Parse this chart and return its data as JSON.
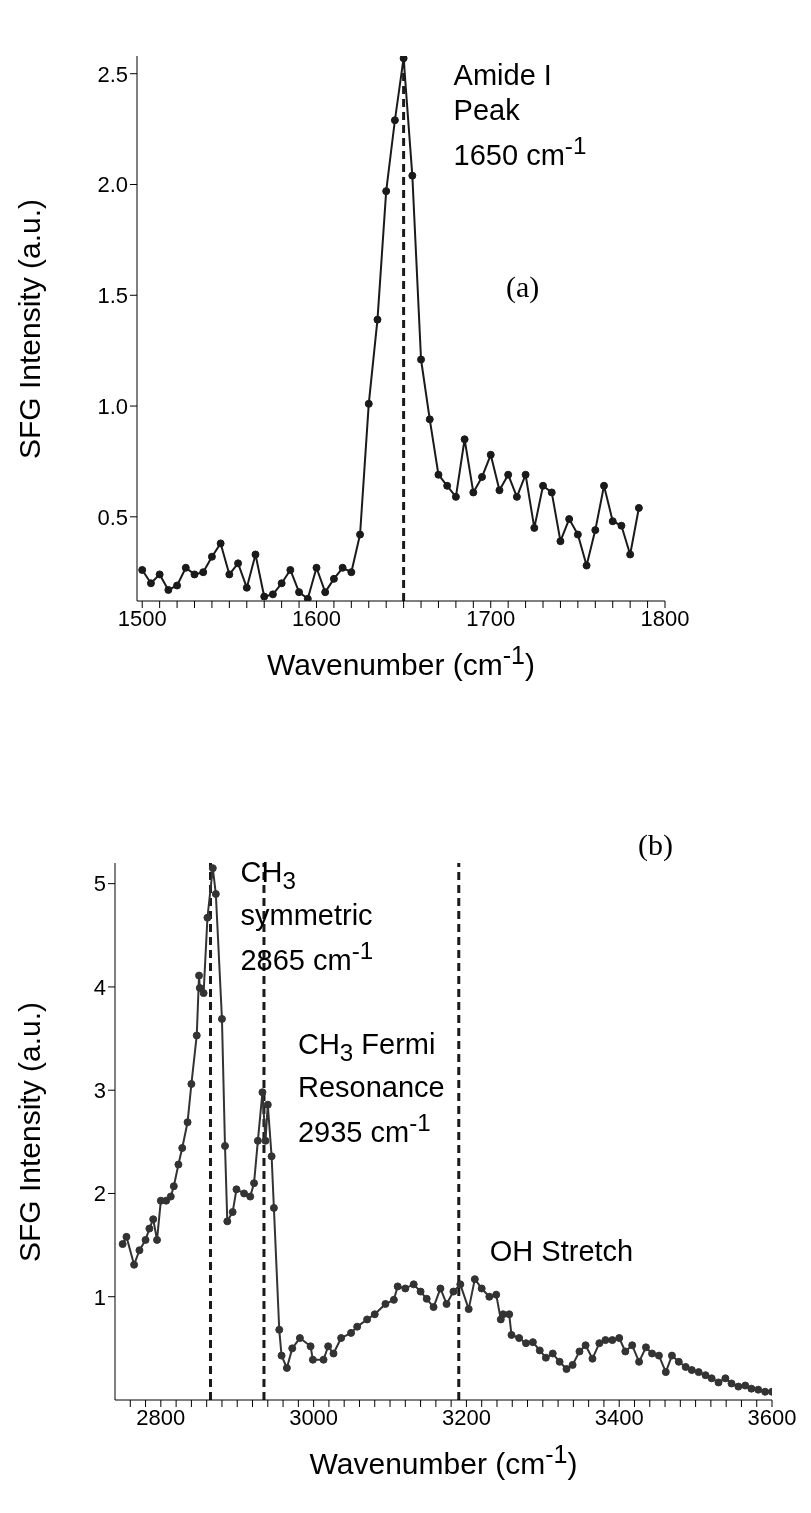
{
  "chart_data": [
    {
      "type": "line",
      "xlabel": "Wavenumber (cm$^{-1}$)",
      "ylabel": "SFG Intensity (a.u.)",
      "color": "#1a1a1a",
      "marker": "circle",
      "line_style": "solid",
      "grid": false,
      "x": [
        1500,
        1505,
        1510,
        1515,
        1520,
        1525,
        1530,
        1535,
        1540,
        1545,
        1550,
        1555,
        1560,
        1565,
        1570,
        1575,
        1580,
        1585,
        1590,
        1595,
        1600,
        1605,
        1610,
        1615,
        1620,
        1625,
        1630,
        1635,
        1640,
        1645,
        1650,
        1655,
        1660,
        1665,
        1670,
        1675,
        1680,
        1685,
        1690,
        1695,
        1700,
        1705,
        1710,
        1715,
        1720,
        1725,
        1730,
        1735,
        1740,
        1745,
        1750,
        1755,
        1760,
        1765,
        1770,
        1775,
        1780,
        1785
      ],
      "values": [
        0.26,
        0.2,
        0.24,
        0.17,
        0.19,
        0.27,
        0.24,
        0.25,
        0.32,
        0.38,
        0.24,
        0.29,
        0.18,
        0.33,
        0.14,
        0.15,
        0.2,
        0.26,
        0.16,
        0.13,
        0.27,
        0.16,
        0.22,
        0.27,
        0.25,
        0.42,
        1.01,
        1.39,
        1.97,
        2.29,
        2.57,
        2.04,
        1.21,
        0.94,
        0.69,
        0.64,
        0.59,
        0.85,
        0.61,
        0.68,
        0.78,
        0.62,
        0.69,
        0.59,
        0.69,
        0.45,
        0.64,
        0.61,
        0.39,
        0.49,
        0.42,
        0.28,
        0.44,
        0.64,
        0.48,
        0.46,
        0.33,
        0.54
      ],
      "xlim": [
        1497,
        1800
      ],
      "ylim": [
        0.12,
        2.58
      ],
      "xticks": [
        1500,
        {
          "value": 1510,
          "label": null
        },
        {
          "value": 1520,
          "label": null
        },
        {
          "value": 1530,
          "label": null
        },
        {
          "value": 1540,
          "label": null
        },
        {
          "value": 1550,
          "label": null
        },
        {
          "value": 1560,
          "label": null
        },
        {
          "value": 1570,
          "label": null
        },
        {
          "value": 1580,
          "label": null
        },
        {
          "value": 1590,
          "label": null
        },
        1600,
        {
          "value": 1610,
          "label": null
        },
        {
          "value": 1620,
          "label": null
        },
        {
          "value": 1630,
          "label": null
        },
        {
          "value": 1640,
          "label": null
        },
        {
          "value": 1650,
          "label": null
        },
        {
          "value": 1660,
          "label": null
        },
        {
          "value": 1670,
          "label": null
        },
        {
          "value": 1680,
          "label": null
        },
        {
          "value": 1690,
          "label": null
        },
        1700,
        {
          "value": 1710,
          "label": null
        },
        {
          "value": 1720,
          "label": null
        },
        {
          "value": 1730,
          "label": null
        },
        {
          "value": 1740,
          "label": null
        },
        {
          "value": 1750,
          "label": null
        },
        {
          "value": 1760,
          "label": null
        },
        {
          "value": 1770,
          "label": null
        },
        {
          "value": 1780,
          "label": null
        },
        {
          "value": 1790,
          "label": null
        },
        1800
      ],
      "yticks": [
        0.5,
        {
          "value": 1,
          "label": "1.0"
        },
        1.5,
        {
          "value": 2,
          "label": "2.0"
        },
        2.5
      ],
      "ref_lines": [
        {
          "axis": "x",
          "value": 1650,
          "line_style": "dashed",
          "color": "#1a1a1a"
        }
      ],
      "annotations": [
        {
          "text": "Amide I\nPeak\n1650 cm$^{-1}$",
          "x": 1650,
          "y": 2.57
        },
        "(a)"
      ]
    },
    {
      "type": "line",
      "xlabel": "Wavenumber (cm$^{-1}$)",
      "ylabel": "SFG Intensity (a.u.)",
      "color": "#333333",
      "marker": "circle",
      "line_style": "solid",
      "grid": false,
      "x": [
        2750,
        2755,
        2765,
        2772,
        2780,
        2785,
        2790,
        2795,
        2800,
        2807,
        2813,
        2817,
        2823,
        2828,
        2835,
        2840,
        2847,
        2850,
        2851,
        2856,
        2861,
        2868,
        2872,
        2880,
        2884,
        2887,
        2894,
        2899,
        2909,
        2917,
        2922,
        2927,
        2933,
        2937,
        2940,
        2945,
        2948,
        2955,
        2958,
        2965,
        2972,
        2982,
        2996,
        2999,
        3013,
        3019,
        3026,
        3036,
        3049,
        3057,
        3070,
        3080,
        3094,
        3105,
        3110,
        3120,
        3131,
        3140,
        3148,
        3157,
        3166,
        3174,
        3183,
        3192,
        3203,
        3211,
        3220,
        3230,
        3239,
        3245,
        3248,
        3256,
        3259,
        3269,
        3278,
        3287,
        3296,
        3304,
        3313,
        3322,
        3331,
        3339,
        3348,
        3356,
        3365,
        3374,
        3382,
        3391,
        3400,
        3408,
        3417,
        3426,
        3435,
        3443,
        3452,
        3461,
        3469,
        3478,
        3487,
        3495,
        3504,
        3513,
        3521,
        3530,
        3539,
        3547,
        3556,
        3565,
        3573,
        3582,
        3591,
        3600
      ],
      "values": [
        1.51,
        1.58,
        1.31,
        1.45,
        1.55,
        1.66,
        1.75,
        1.55,
        1.93,
        1.93,
        1.97,
        2.07,
        2.28,
        2.44,
        2.69,
        3.06,
        3.53,
        4.11,
        3.99,
        3.94,
        4.67,
        5.15,
        4.9,
        3.69,
        2.46,
        1.73,
        1.82,
        2.04,
        2,
        1.97,
        2.1,
        2.51,
        2.98,
        2.51,
        2.86,
        2.36,
        1.86,
        0.68,
        0.43,
        0.31,
        0.5,
        0.6,
        0.52,
        0.39,
        0.39,
        0.52,
        0.45,
        0.6,
        0.65,
        0.71,
        0.78,
        0.83,
        0.93,
        0.97,
        1.1,
        1.08,
        1.12,
        1.05,
        0.98,
        0.9,
        1.08,
        0.93,
        1.05,
        1.12,
        0.88,
        1.17,
        1.08,
        1,
        1.02,
        0.78,
        0.83,
        0.83,
        0.63,
        0.6,
        0.55,
        0.56,
        0.48,
        0.41,
        0.45,
        0.37,
        0.3,
        0.34,
        0.47,
        0.53,
        0.4,
        0.55,
        0.58,
        0.58,
        0.6,
        0.47,
        0.53,
        0.37,
        0.51,
        0.45,
        0.43,
        0.27,
        0.43,
        0.37,
        0.32,
        0.29,
        0.27,
        0.24,
        0.21,
        0.17,
        0.21,
        0.16,
        0.13,
        0.14,
        0.11,
        0.1,
        0.08,
        0.08
      ],
      "xlim": [
        2740,
        3600
      ],
      "ylim": [
        0,
        5.2
      ],
      "xticks": [
        {
          "value": 2760,
          "label": null
        },
        {
          "value": 2780,
          "label": null
        },
        2800,
        {
          "value": 2820,
          "label": null
        },
        {
          "value": 2840,
          "label": null
        },
        {
          "value": 2860,
          "label": null
        },
        {
          "value": 2880,
          "label": null
        },
        {
          "value": 2900,
          "label": null
        },
        {
          "value": 2920,
          "label": null
        },
        {
          "value": 2940,
          "label": null
        },
        {
          "value": 2960,
          "label": null
        },
        {
          "value": 2980,
          "label": null
        },
        3000,
        {
          "value": 3020,
          "label": null
        },
        {
          "value": 3040,
          "label": null
        },
        {
          "value": 3060,
          "label": null
        },
        {
          "value": 3080,
          "label": null
        },
        {
          "value": 3100,
          "label": null
        },
        {
          "value": 3120,
          "label": null
        },
        {
          "value": 3140,
          "label": null
        },
        {
          "value": 3160,
          "label": null
        },
        {
          "value": 3180,
          "label": null
        },
        3200,
        {
          "value": 3220,
          "label": null
        },
        {
          "value": 3240,
          "label": null
        },
        {
          "value": 3260,
          "label": null
        },
        {
          "value": 3280,
          "label": null
        },
        {
          "value": 3300,
          "label": null
        },
        {
          "value": 3320,
          "label": null
        },
        {
          "value": 3340,
          "label": null
        },
        {
          "value": 3360,
          "label": null
        },
        {
          "value": 3380,
          "label": null
        },
        3400,
        {
          "value": 3420,
          "label": null
        },
        {
          "value": 3440,
          "label": null
        },
        {
          "value": 3460,
          "label": null
        },
        {
          "value": 3480,
          "label": null
        },
        {
          "value": 3500,
          "label": null
        },
        {
          "value": 3520,
          "label": null
        },
        {
          "value": 3540,
          "label": null
        },
        {
          "value": 3560,
          "label": null
        },
        {
          "value": 3580,
          "label": null
        },
        3600
      ],
      "yticks": [
        1,
        2,
        3,
        4,
        5
      ],
      "ref_lines": [
        {
          "axis": "x",
          "value": 2865,
          "line_style": "dashed",
          "color": "#1a1a1a"
        },
        {
          "axis": "x",
          "value": 2935,
          "line_style": "dashed",
          "color": "#1a1a1a"
        },
        {
          "axis": "x",
          "value": 3190,
          "line_style": "dashed",
          "color": "#1a1a1a"
        }
      ],
      "annotations": [
        {
          "text": "CH$_{3}$\nsymmetric\n2865 cm$^{-1}$",
          "x": 2865,
          "y": 5.15
        },
        {
          "text": "CH$_{3}$ Fermi\nResonance\n2935 cm$^{-1}$",
          "x": 2935,
          "y": 2.98
        },
        {
          "text": "OH Stretch",
          "x": 3190,
          "y": 1.12
        },
        "(b)"
      ]
    }
  ]
}
